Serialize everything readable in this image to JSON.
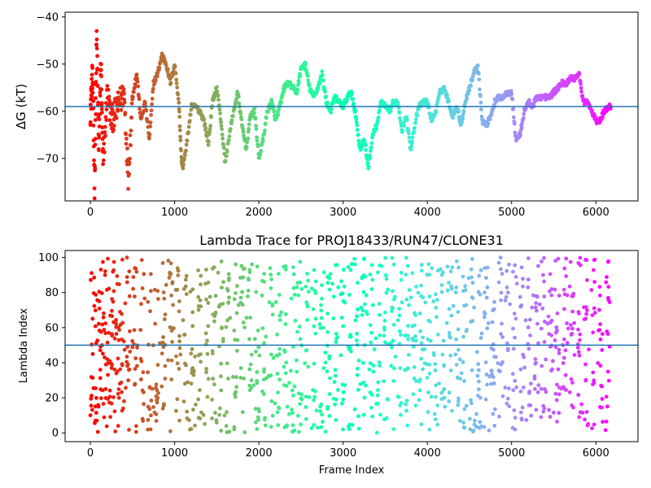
{
  "chart_data": [
    {
      "type": "scatter",
      "title": "",
      "xlabel": "",
      "ylabel": "ΔG (kT)",
      "xlim": [
        -300,
        6500
      ],
      "ylim": [
        -79,
        -39
      ],
      "xticks": [
        0,
        1000,
        2000,
        3000,
        4000,
        5000,
        6000
      ],
      "yticks": [
        -40,
        -50,
        -60,
        -70
      ],
      "reference_line": -59,
      "reference_color": "#1f77b4",
      "colormap": "rainbow",
      "grid": false,
      "series": [
        {
          "x": [
            0,
            25,
            50,
            75,
            100,
            125,
            150,
            200,
            250,
            300,
            350,
            400,
            450,
            500,
            550,
            600,
            650,
            700,
            750,
            800,
            850,
            900,
            950,
            1000,
            1050,
            1080,
            1100,
            1150,
            1200,
            1250,
            1300,
            1350,
            1400,
            1450,
            1500,
            1550,
            1600,
            1650,
            1700,
            1750,
            1800,
            1850,
            1900,
            1950,
            2000,
            2050,
            2100,
            2150,
            2200,
            2250,
            2300,
            2350,
            2400,
            2450,
            2500,
            2550,
            2600,
            2650,
            2700,
            2750,
            2800,
            2850,
            2900,
            2950,
            3000,
            3050,
            3100,
            3150,
            3200,
            3250,
            3300,
            3350,
            3400,
            3450,
            3500,
            3550,
            3600,
            3650,
            3700,
            3750,
            3800,
            3850,
            3900,
            3950,
            4000,
            4050,
            4100,
            4150,
            4200,
            4250,
            4300,
            4350,
            4400,
            4450,
            4500,
            4550,
            4600,
            4650,
            4700,
            4750,
            4800,
            4850,
            4900,
            4950,
            5000,
            5050,
            5100,
            5150,
            5200,
            5250,
            5300,
            5350,
            5400,
            5450,
            5500,
            5550,
            5600,
            5650,
            5700,
            5750,
            5800,
            5850,
            5900,
            5950,
            6000,
            6050,
            6100,
            6150,
            6180
          ],
          "y": [
            -60,
            -52,
            -76,
            -44,
            -68,
            -49,
            -72,
            -56,
            -62,
            -60,
            -58,
            -56,
            -74,
            -57,
            -52,
            -62,
            -58,
            -66,
            -54,
            -52,
            -48,
            -50,
            -54,
            -50,
            -58,
            -70,
            -72,
            -66,
            -59,
            -59,
            -60,
            -62,
            -67,
            -58,
            -55,
            -62,
            -71,
            -65,
            -60,
            -56,
            -63,
            -68,
            -61,
            -60,
            -70,
            -66,
            -60,
            -58,
            -62,
            -59,
            -55,
            -54,
            -55,
            -56,
            -51,
            -50,
            -55,
            -57,
            -55,
            -52,
            -58,
            -60,
            -57,
            -58,
            -59,
            -57,
            -56,
            -61,
            -68,
            -66,
            -72,
            -65,
            -63,
            -58,
            -59,
            -60,
            -58,
            -58,
            -64,
            -61,
            -68,
            -63,
            -59,
            -58,
            -58,
            -62,
            -60,
            -56,
            -55,
            -58,
            -61,
            -59,
            -63,
            -58,
            -55,
            -52,
            -50,
            -62,
            -63,
            -61,
            -58,
            -57,
            -57,
            -56,
            -56,
            -66,
            -65,
            -60,
            -58,
            -59,
            -57,
            -57,
            -57,
            -57,
            -56,
            -55,
            -54,
            -54,
            -53,
            -53,
            -52,
            -58,
            -58,
            -60,
            -62,
            -62,
            -60,
            -59,
            -59
          ]
        }
      ]
    },
    {
      "type": "scatter",
      "title": "Lambda Trace for PROJ18433/RUN47/CLONE31",
      "xlabel": "Frame Index",
      "ylabel": "Lambda Index",
      "xlim": [
        -300,
        6500
      ],
      "ylim": [
        -5,
        104
      ],
      "xticks": [
        0,
        1000,
        2000,
        3000,
        4000,
        5000,
        6000
      ],
      "yticks": [
        0,
        20,
        40,
        60,
        80,
        100
      ],
      "reference_line": 50,
      "reference_color": "#1f77b4",
      "colormap": "rainbow",
      "grid": false,
      "x_range": [
        0,
        6180
      ],
      "y_range": [
        0,
        100
      ]
    }
  ]
}
